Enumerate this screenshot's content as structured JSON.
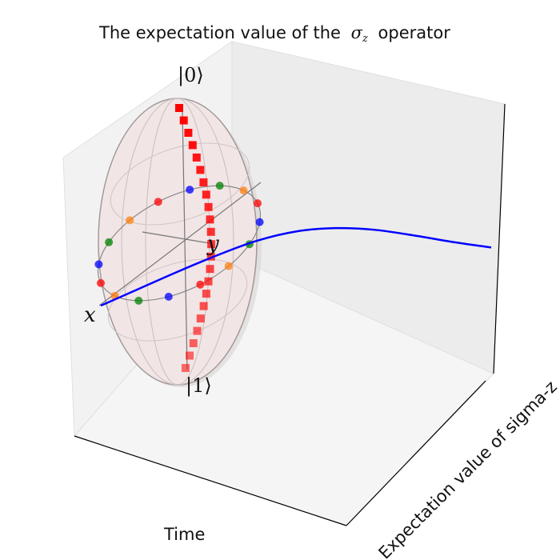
{
  "chart_data": {
    "type": "line",
    "title": "The expectation value of the",
    "title_symbol": "σ",
    "title_symbol_sub": "z",
    "title_suffix": "operator",
    "xlabel": "Time",
    "ylabel": "Expectation value of sigma-z",
    "series": [
      {
        "color": "#0000ff",
        "x": [
          0,
          0.1,
          0.2,
          0.3,
          0.4,
          0.5,
          0.6,
          0.7,
          0.8,
          0.9,
          1.0
        ],
        "values": [
          0.0,
          0.16,
          0.32,
          0.47,
          0.6,
          0.68,
          0.7,
          0.67,
          0.6,
          0.52,
          0.45
        ]
      }
    ],
    "bloch_sphere": {
      "labels": {
        "north": "|0⟩",
        "south": "|1⟩",
        "x": "x",
        "y": "y"
      },
      "point_colors": [
        "#ff0000",
        "#0000ff",
        "#008000",
        "#ff7f0e"
      ],
      "trajectory_color": "#ff0000",
      "trajectory_marker": "square"
    },
    "grid": true
  }
}
